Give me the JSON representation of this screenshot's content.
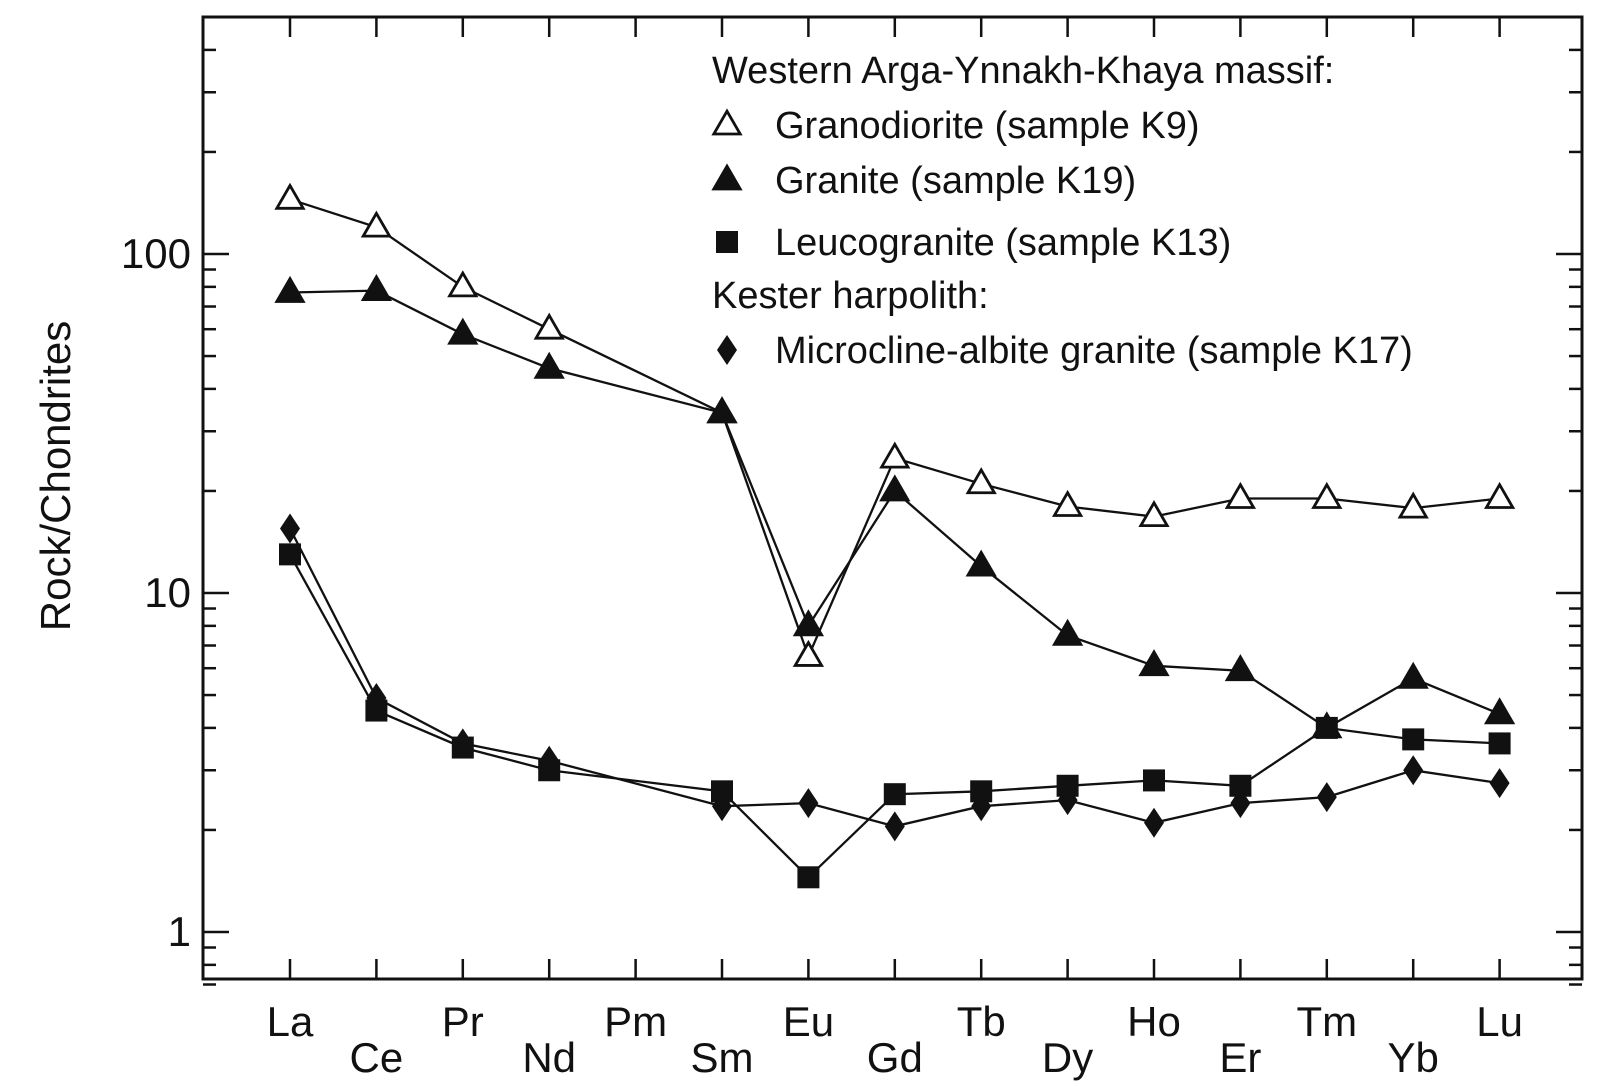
{
  "chart_data": {
    "type": "line",
    "ylabel": "Rock/Chondrites",
    "xlabel": "",
    "yscale": "log",
    "ylim": [
      0.7,
      500
    ],
    "y_tick_labels": [
      {
        "value": 1,
        "label": "1"
      },
      {
        "value": 10,
        "label": "10"
      },
      {
        "value": 100,
        "label": "100"
      }
    ],
    "categories": [
      "La",
      "Ce",
      "Pr",
      "Nd",
      "Pm",
      "Sm",
      "Eu",
      "Gd",
      "Tb",
      "Dy",
      "Ho",
      "Er",
      "Tm",
      "Yb",
      "Lu"
    ],
    "grid": false,
    "legend_placement": "top-right",
    "legend": [
      {
        "kind": "heading",
        "text": "Western Arga-Ynnakh-Khaya massif:"
      },
      {
        "kind": "entry",
        "series": 0,
        "text": "Granodiorite (sample K9)"
      },
      {
        "kind": "entry",
        "series": 1,
        "text": "Granite (sample K19)"
      },
      {
        "kind": "entry",
        "series": 2,
        "text": "Leucogranite (sample K13)"
      },
      {
        "kind": "heading",
        "text": "Kester harpolith:"
      },
      {
        "kind": "entry",
        "series": 3,
        "text": "Microcline-albite granite (sample K17)"
      }
    ],
    "series": [
      {
        "name": "Granodiorite (sample K9)",
        "marker": "triangle-open",
        "points": [
          [
            "La",
            145
          ],
          [
            "Ce",
            120
          ],
          [
            "Pr",
            80
          ],
          [
            "Nd",
            60
          ],
          [
            "Sm",
            34
          ],
          [
            "Eu",
            6.5
          ],
          [
            "Gd",
            25
          ],
          [
            "Tb",
            21
          ],
          [
            "Dy",
            18
          ],
          [
            "Ho",
            16.8
          ],
          [
            "Er",
            19
          ],
          [
            "Tm",
            19
          ],
          [
            "Yb",
            17.8
          ],
          [
            "Lu",
            19
          ]
        ]
      },
      {
        "name": "Granite (sample K19)",
        "marker": "triangle-filled",
        "points": [
          [
            "La",
            77
          ],
          [
            "Ce",
            78
          ],
          [
            "Pr",
            58
          ],
          [
            "Nd",
            46
          ],
          [
            "Sm",
            34
          ],
          [
            "Eu",
            8
          ],
          [
            "Gd",
            20
          ],
          [
            "Tb",
            12
          ],
          [
            "Dy",
            7.5
          ],
          [
            "Ho",
            6.1
          ],
          [
            "Er",
            5.9
          ],
          [
            "Tm",
            4.0
          ],
          [
            "Yb",
            5.6
          ],
          [
            "Lu",
            4.4
          ]
        ]
      },
      {
        "name": "Leucogranite (sample K13)",
        "marker": "square-filled",
        "points": [
          [
            "La",
            13
          ],
          [
            "Ce",
            4.5
          ],
          [
            "Pr",
            3.5
          ],
          [
            "Nd",
            3.0
          ],
          [
            "Sm",
            2.6
          ],
          [
            "Eu",
            1.45
          ],
          [
            "Gd",
            2.55
          ],
          [
            "Tb",
            2.6
          ],
          [
            "Dy",
            2.7
          ],
          [
            "Ho",
            2.8
          ],
          [
            "Er",
            2.7
          ],
          [
            "Tm",
            4.0
          ],
          [
            "Yb",
            3.7
          ],
          [
            "Lu",
            3.6
          ]
        ]
      },
      {
        "name": "Microcline-albite granite (sample K17)",
        "marker": "diamond-filled",
        "points": [
          [
            "La",
            15.5
          ],
          [
            "Ce",
            4.9
          ],
          [
            "Pr",
            3.6
          ],
          [
            "Nd",
            3.2
          ],
          [
            "Sm",
            2.35
          ],
          [
            "Eu",
            2.4
          ],
          [
            "Gd",
            2.05
          ],
          [
            "Tb",
            2.35
          ],
          [
            "Dy",
            2.45
          ],
          [
            "Ho",
            2.1
          ],
          [
            "Er",
            2.4
          ],
          [
            "Tm",
            2.5
          ],
          [
            "Yb",
            3.0
          ],
          [
            "Lu",
            2.75
          ]
        ]
      }
    ]
  }
}
